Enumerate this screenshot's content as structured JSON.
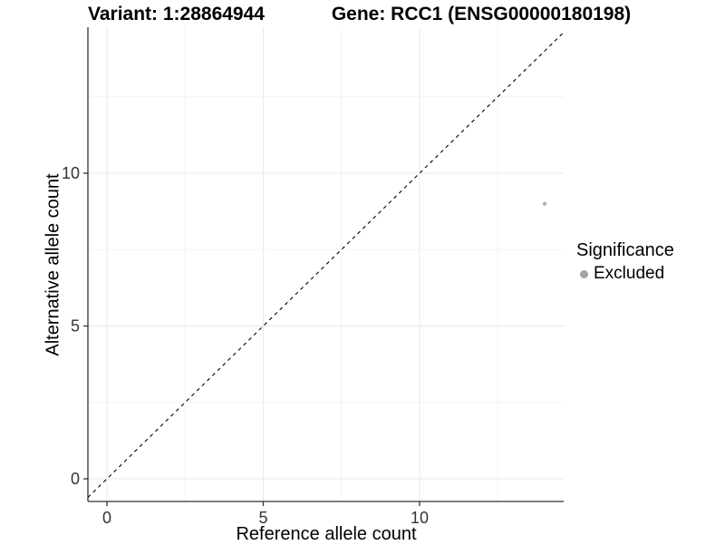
{
  "titles": {
    "left": "Variant: 1:28864944",
    "right": "Gene: RCC1 (ENSG00000180198)"
  },
  "chart_data": {
    "type": "scatter",
    "title_left": "Variant: 1:28864944",
    "title_right": "Gene: RCC1 (ENSG00000180198)",
    "xlabel": "Reference allele count",
    "ylabel": "Alternative allele count",
    "xlim": [
      -0.6,
      14.5
    ],
    "ylim": [
      -0.74,
      14.8
    ],
    "x_ticks": [
      0,
      5,
      10
    ],
    "y_ticks": [
      0,
      5,
      10
    ],
    "x_minor_ticks": [
      2.5,
      7.5,
      12.5
    ],
    "y_minor_ticks": [
      2.5,
      7.5,
      12.5
    ],
    "grid": "on",
    "points": [
      {
        "x": 14,
        "y": 9,
        "series": "Excluded"
      }
    ],
    "reference_line": {
      "style": "dashed",
      "slope": 1,
      "intercept": 0
    },
    "legend": {
      "title": "Significance",
      "position": "right",
      "entries": [
        {
          "label": "Excluded",
          "color": "#a3a3a3"
        }
      ]
    }
  },
  "colors": {
    "background": "#ffffff",
    "grid_major": "#e8e8e8",
    "grid_minor": "#f3f3f3",
    "axis": "#333333",
    "tick_label": "#333333",
    "ref_line": "#000000",
    "point": "#b3b3b3",
    "legend_key": "#a3a3a3"
  }
}
